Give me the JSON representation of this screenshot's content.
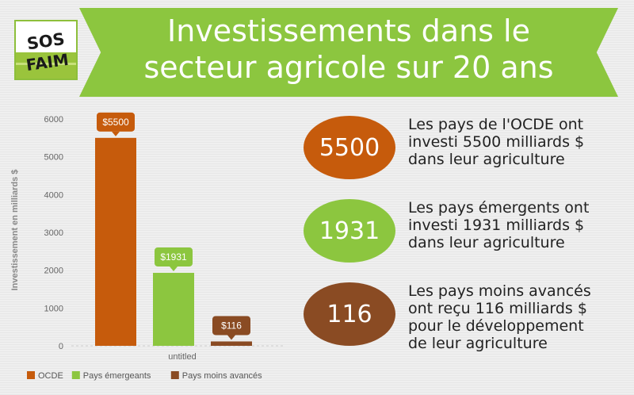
{
  "header": {
    "logo_text": [
      "SOS",
      "FAIM"
    ],
    "title_lines": [
      "Investissements dans le",
      "secteur agricole sur 20 ans"
    ]
  },
  "colors": {
    "ocde": "#c65b0c",
    "emergents": "#8cc63f",
    "moins_avances": "#8a4b23",
    "banner": "#8cc63f"
  },
  "chart_data": {
    "type": "bar",
    "categories": [
      "untitled"
    ],
    "series": [
      {
        "name": "OCDE",
        "values": [
          5500
        ],
        "label": "$5500",
        "color": "#c65b0c"
      },
      {
        "name": "Pays émergeants",
        "values": [
          1931
        ],
        "label": "$1931",
        "color": "#8cc63f"
      },
      {
        "name": "Pays moins avancés",
        "values": [
          116
        ],
        "label": "$116",
        "color": "#8a4b23"
      }
    ],
    "ylabel": "Investissement en milliards $",
    "xlabel": "",
    "ylim": [
      0,
      6000
    ],
    "yticks": [
      0,
      1000,
      2000,
      3000,
      4000,
      5000,
      6000
    ],
    "grid": false,
    "legend": "bottom"
  },
  "stats": [
    {
      "number": "5500",
      "color": "#c65b0c",
      "lines": [
        "Les pays de l'OCDE ont",
        "investi 5500 milliards $",
        "dans leur agriculture"
      ]
    },
    {
      "number": "1931",
      "color": "#8cc63f",
      "lines": [
        "Les pays émergents ont",
        "investi 1931 milliards $",
        "dans leur agriculture"
      ]
    },
    {
      "number": "116",
      "color": "#8a4b23",
      "lines": [
        "Les pays moins avancés",
        "ont reçu 116 milliards $",
        "pour le développement",
        "de leur agriculture"
      ]
    }
  ]
}
